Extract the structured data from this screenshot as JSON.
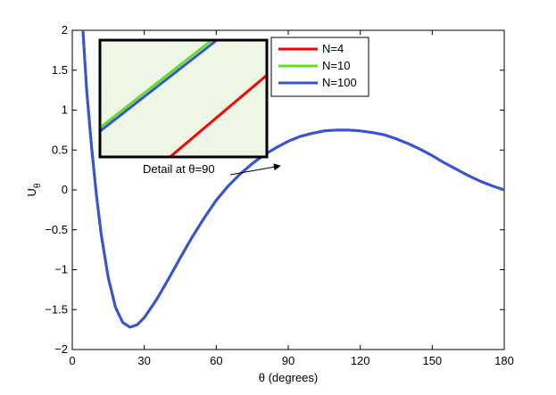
{
  "chart_data": {
    "type": "line",
    "xlabel": "θ (degrees)",
    "ylabel": "U",
    "ylabel_subscript": "θ",
    "xlim": [
      0,
      180
    ],
    "ylim": [
      -2,
      2
    ],
    "xticks": [
      0,
      30,
      60,
      90,
      120,
      150,
      180
    ],
    "yticks": [
      -2,
      -1.5,
      -1,
      -0.5,
      0,
      0.5,
      1,
      1.5,
      2
    ],
    "xtick_labels": [
      "0",
      "30",
      "60",
      "90",
      "120",
      "150",
      "180"
    ],
    "ytick_labels": [
      "−2",
      "−1.5",
      "−1",
      "−0.5",
      "0",
      "0.5",
      "1",
      "1.5",
      "2"
    ],
    "grid": false,
    "legend_position": "top-right of inset",
    "series": [
      {
        "name": "N=4",
        "color": "#ff0000",
        "x": [
          4,
          6,
          8,
          10,
          12,
          15,
          18,
          21,
          24,
          27,
          30,
          35,
          40,
          45,
          50,
          55,
          60,
          65,
          70,
          75,
          80,
          85,
          90,
          95,
          100,
          105,
          110,
          115,
          120,
          125,
          130,
          135,
          140,
          145,
          150,
          155,
          160,
          165,
          170,
          175,
          180
        ],
        "y": [
          2.2,
          1.25,
          0.55,
          -0.05,
          -0.55,
          -1.1,
          -1.47,
          -1.66,
          -1.72,
          -1.69,
          -1.6,
          -1.38,
          -1.12,
          -0.85,
          -0.59,
          -0.35,
          -0.13,
          0.05,
          0.2,
          0.33,
          0.44,
          0.53,
          0.61,
          0.67,
          0.71,
          0.74,
          0.75,
          0.75,
          0.74,
          0.72,
          0.69,
          0.64,
          0.58,
          0.51,
          0.43,
          0.34,
          0.26,
          0.18,
          0.11,
          0.05,
          0.0
        ]
      },
      {
        "name": "N=10",
        "color": "#66dd22",
        "x": [
          4,
          6,
          8,
          10,
          12,
          15,
          18,
          21,
          24,
          27,
          30,
          35,
          40,
          45,
          50,
          55,
          60,
          65,
          70,
          75,
          80,
          85,
          90,
          95,
          100,
          105,
          110,
          115,
          120,
          125,
          130,
          135,
          140,
          145,
          150,
          155,
          160,
          165,
          170,
          175,
          180
        ],
        "y": [
          2.2,
          1.25,
          0.55,
          -0.05,
          -0.55,
          -1.1,
          -1.47,
          -1.66,
          -1.72,
          -1.69,
          -1.6,
          -1.38,
          -1.12,
          -0.85,
          -0.59,
          -0.35,
          -0.13,
          0.05,
          0.2,
          0.33,
          0.44,
          0.53,
          0.61,
          0.67,
          0.71,
          0.74,
          0.75,
          0.75,
          0.74,
          0.72,
          0.69,
          0.64,
          0.58,
          0.51,
          0.43,
          0.34,
          0.26,
          0.18,
          0.11,
          0.05,
          0.0
        ]
      },
      {
        "name": "N=100",
        "color": "#3355dd",
        "x": [
          4,
          6,
          8,
          10,
          12,
          15,
          18,
          21,
          24,
          27,
          30,
          35,
          40,
          45,
          50,
          55,
          60,
          65,
          70,
          75,
          80,
          85,
          90,
          95,
          100,
          105,
          110,
          115,
          120,
          125,
          130,
          135,
          140,
          145,
          150,
          155,
          160,
          165,
          170,
          175,
          180
        ],
        "y": [
          2.2,
          1.25,
          0.55,
          -0.05,
          -0.55,
          -1.1,
          -1.47,
          -1.66,
          -1.72,
          -1.69,
          -1.6,
          -1.38,
          -1.12,
          -0.85,
          -0.59,
          -0.35,
          -0.13,
          0.05,
          0.2,
          0.33,
          0.44,
          0.53,
          0.61,
          0.67,
          0.71,
          0.74,
          0.75,
          0.75,
          0.74,
          0.72,
          0.69,
          0.64,
          0.58,
          0.51,
          0.43,
          0.34,
          0.26,
          0.18,
          0.11,
          0.05,
          0.0
        ]
      }
    ],
    "annotation": "Detail at θ=90",
    "inset": {
      "background": "#eef7e6",
      "series": [
        {
          "name": "N=4",
          "color": "#ff0000",
          "from": [
            0.42,
            0.0
          ],
          "to": [
            1.0,
            0.7
          ]
        },
        {
          "name": "N=10",
          "color": "#66dd22",
          "from": [
            0.0,
            0.25
          ],
          "to": [
            0.67,
            1.0
          ]
        },
        {
          "name": "N=100",
          "color": "#3355dd",
          "from": [
            0.0,
            0.22
          ],
          "to": [
            0.7,
            1.0
          ]
        }
      ]
    }
  }
}
